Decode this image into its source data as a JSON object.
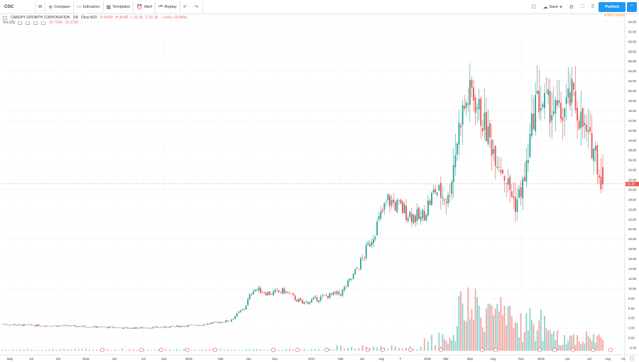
{
  "toolbar": {
    "symbol": "CGC",
    "interval": "W",
    "compare": "Compare",
    "indicators": "Indicators",
    "templates": "Templates",
    "alert": "Alert",
    "replay": "Replay",
    "save": "Save",
    "publish": "Publish"
  },
  "legend": {
    "title": "CANOPY GROWTH CORPORATION",
    "interval": "1W",
    "exchange": "Cboe BZX",
    "open": "O 34.60",
    "high": "H 34.82",
    "low": "L 31.18",
    "close": "C 31.18",
    "change": "−3.64 (−10.45%)",
    "vol_label": "Vol (20)",
    "vol_value": "21.769K",
    "vol_ma": "21.179K"
  },
  "market_status": "● Mkt Closed",
  "price_axis": {
    "labels": [
      "64.00",
      "62.00",
      "60.00",
      "58.00",
      "56.00",
      "54.00",
      "52.00",
      "50.00",
      "48.00",
      "46.00",
      "44.00",
      "42.00",
      "40.00",
      "38.00",
      "36.00",
      "34.00",
      "32.00",
      "30.00",
      "28.00",
      "26.00",
      "24.00",
      "22.00",
      "20.00",
      "18.00",
      "16.00",
      "14.00",
      "12.00",
      "10.00",
      "8.00",
      "6.00",
      "4.00",
      "2.00",
      "0.00",
      "−2.00"
    ],
    "last_price": "31.18"
  },
  "time_axis": {
    "labels": [
      "May",
      "Jul",
      "Oct",
      "2015",
      "Apr",
      "Jul",
      "Sep",
      "2016",
      "Mar",
      "Jun",
      "Sep",
      "2017",
      "Mar",
      "Jun",
      "Aug",
      "Y",
      "2018",
      "Mar",
      "May",
      "Aug",
      "Nov",
      "2019",
      "Apr",
      "Jul",
      "Aug",
      "Oc"
    ]
  },
  "colors": {
    "up": "#26a69a",
    "down": "#ef5350",
    "vol_up": "#8fd3cb",
    "vol_down": "#f5a6a4",
    "grid": "#f0f3fa",
    "accent": "#2196f3"
  },
  "chart_data": {
    "type": "candlestick",
    "symbol": "CGC",
    "interval": "1W",
    "y_range": [
      -3,
      65
    ],
    "description": "Weekly candles rising from ~2.5 (2014) to peaks near 57 (late 2018) and ~52 (mid 2019), last close 31.18",
    "anchors": [
      [
        0,
        2.8
      ],
      [
        12,
        2.6
      ],
      [
        40,
        2.4
      ],
      [
        70,
        2.0
      ],
      [
        90,
        2.2
      ],
      [
        110,
        2.7
      ],
      [
        125,
        3.5
      ],
      [
        133,
        6.0
      ],
      [
        138,
        10.0
      ],
      [
        147,
        9.0
      ],
      [
        155,
        9.5
      ],
      [
        165,
        7.0
      ],
      [
        178,
        8.5
      ],
      [
        186,
        9.0
      ],
      [
        192,
        12.0
      ],
      [
        198,
        16.0
      ],
      [
        205,
        22.0
      ],
      [
        212,
        28.0
      ],
      [
        220,
        26.0
      ],
      [
        230,
        24.0
      ],
      [
        238,
        30.0
      ],
      [
        245,
        28.0
      ],
      [
        252,
        45.0
      ],
      [
        258,
        50.0
      ],
      [
        262,
        46.0
      ],
      [
        268,
        40.0
      ],
      [
        275,
        34.0
      ],
      [
        282,
        27.0
      ],
      [
        287,
        32.0
      ],
      [
        293,
        48.0
      ],
      [
        300,
        47.0
      ],
      [
        307,
        45.0
      ],
      [
        313,
        49.0
      ],
      [
        318,
        44.0
      ],
      [
        322,
        40.0
      ],
      [
        326,
        38.0
      ],
      [
        328,
        33.0
      ],
      [
        330,
        31.18
      ]
    ]
  }
}
